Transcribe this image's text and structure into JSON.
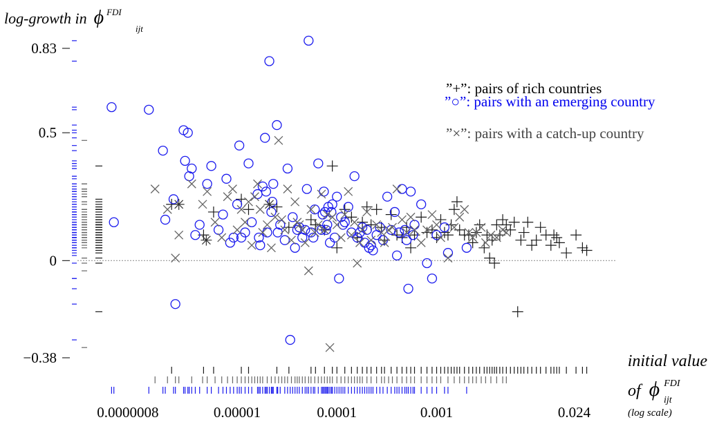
{
  "chart_data": {
    "type": "scatter",
    "title": "",
    "ylabel": {
      "main": "log-growth in",
      "symbol": "ϕ",
      "sup": "FDI",
      "sub": "ijt"
    },
    "xlabel": {
      "line1": "initial value",
      "line2_prefix": "of",
      "symbol": "ϕ",
      "sup": "FDI",
      "sub": "ijt",
      "line3": "(log scale)"
    },
    "x_scale": "log",
    "xlim": [
      2.5e-07,
      0.062
    ],
    "ylim": [
      -0.38,
      0.83
    ],
    "xticks": [
      {
        "label": "0.0000008",
        "value": 8e-07
      },
      {
        "label": "0.00001",
        "value": 1e-05
      },
      {
        "label": "0.0001",
        "value": 0.0001
      },
      {
        "label": "0.001",
        "value": 0.001
      },
      {
        "label": "0.024",
        "value": 0.024
      }
    ],
    "yticks": [
      {
        "label": "0.83",
        "value": 0.83
      },
      {
        "label": "0.5",
        "value": 0.5
      },
      {
        "label": "0",
        "value": 0
      },
      {
        "label": "−0.38",
        "value": -0.38
      }
    ],
    "reference_line": {
      "y": 0,
      "style": "dotted"
    },
    "legend": {
      "placement": "top-right",
      "entries": [
        {
          "text": "”+”: pairs of rich countries",
          "color": "#000000"
        },
        {
          "text": "”○”: pairs with an emerging country",
          "color": "#0000ee"
        },
        {
          "text": "”×”: pairs with a catch-up country",
          "color": "#444444"
        }
      ]
    },
    "colors": {
      "rich": "#1a1a1a",
      "emerging": "#1a1aee",
      "catchup": "#666666"
    },
    "series": [
      {
        "key": "rich",
        "marker": "plus",
        "points": [
          [
            2.2e-06,
            0.22
          ],
          [
            4.6e-06,
            0.1
          ],
          [
            5.8e-06,
            0.19
          ],
          [
            1.1e-05,
            0.24
          ],
          [
            1.3e-05,
            0.2
          ],
          [
            2.5e-05,
            0.21
          ],
          [
            3.3e-05,
            0.13
          ],
          [
            5.5e-05,
            0.16
          ],
          [
            6.1e-05,
            0.14
          ],
          [
            7.5e-05,
            0.12
          ],
          [
            9e-05,
            0.37
          ],
          [
            0.0001,
            0.05
          ],
          [
            0.00012,
            0.2
          ],
          [
            0.00014,
            0.17
          ],
          [
            0.00016,
            0.09
          ],
          [
            0.00018,
            0.15
          ],
          [
            0.0002,
            0.21
          ],
          [
            0.00022,
            0.14
          ],
          [
            0.00025,
            0.2
          ],
          [
            0.00028,
            0.13
          ],
          [
            0.0003,
            0.08
          ],
          [
            0.00035,
            0.18
          ],
          [
            0.0004,
            0.1
          ],
          [
            0.00045,
            0.09
          ],
          [
            0.0005,
            0.13
          ],
          [
            0.00055,
            0.05
          ],
          [
            0.0006,
            0.1
          ],
          [
            0.0007,
            0.17
          ],
          [
            0.0008,
            0.11
          ],
          [
            0.0009,
            0.12
          ],
          [
            0.001,
            0.09
          ],
          [
            0.0011,
            0.16
          ],
          [
            0.0012,
            0.11
          ],
          [
            0.0013,
            0.1
          ],
          [
            0.0014,
            0.14
          ],
          [
            0.0015,
            0.2
          ],
          [
            0.0016,
            0.23
          ],
          [
            0.0017,
            0.12
          ],
          [
            0.0019,
            0.1
          ],
          [
            0.0021,
            0.1
          ],
          [
            0.0023,
            0.07
          ],
          [
            0.0025,
            0.11
          ],
          [
            0.0027,
            0.14
          ],
          [
            0.003,
            0.05
          ],
          [
            0.0032,
            0.1
          ],
          [
            0.0034,
            0.01
          ],
          [
            0.0036,
            0.08
          ],
          [
            0.0038,
            -0.01
          ],
          [
            0.004,
            0.14
          ],
          [
            0.0043,
            0.1
          ],
          [
            0.0046,
            0.16
          ],
          [
            0.005,
            0.14
          ],
          [
            0.0055,
            0.12
          ],
          [
            0.006,
            0.15
          ],
          [
            0.0065,
            -0.2
          ],
          [
            0.007,
            0.08
          ],
          [
            0.0075,
            0.11
          ],
          [
            0.0082,
            0.15
          ],
          [
            0.009,
            0.06
          ],
          [
            0.01,
            0.08
          ],
          [
            0.011,
            0.13
          ],
          [
            0.0125,
            0.1
          ],
          [
            0.014,
            0.06
          ],
          [
            0.015,
            0.1
          ],
          [
            0.016,
            0.09
          ],
          [
            0.017,
            0.07
          ],
          [
            0.02,
            0.03
          ],
          [
            0.025,
            0.1
          ],
          [
            0.029,
            0.05
          ],
          [
            0.032,
            0.04
          ]
        ]
      },
      {
        "key": "emerging",
        "marker": "circle",
        "points": [
          [
            5.5e-07,
            0.6
          ],
          [
            5.8e-07,
            0.15
          ],
          [
            1.3e-06,
            0.59
          ],
          [
            1.8e-06,
            0.43
          ],
          [
            1.9e-06,
            0.16
          ],
          [
            2.3e-06,
            0.24
          ],
          [
            2.4e-06,
            -0.17
          ],
          [
            2.9e-06,
            0.51
          ],
          [
            3e-06,
            0.39
          ],
          [
            3.2e-06,
            0.5
          ],
          [
            3.3e-06,
            0.33
          ],
          [
            3.5e-06,
            0.36
          ],
          [
            3.8e-06,
            0.1
          ],
          [
            4.2e-06,
            0.14
          ],
          [
            5e-06,
            0.3
          ],
          [
            5.5e-06,
            0.37
          ],
          [
            6.5e-06,
            0.12
          ],
          [
            7.2e-06,
            0.18
          ],
          [
            7.8e-06,
            0.32
          ],
          [
            8.5e-06,
            0.07
          ],
          [
            9.2e-06,
            0.09
          ],
          [
            1e-05,
            0.22
          ],
          [
            1.05e-05,
            0.45
          ],
          [
            1.1e-05,
            0.09
          ],
          [
            1.2e-05,
            0.11
          ],
          [
            1.3e-05,
            0.38
          ],
          [
            1.4e-05,
            0.15
          ],
          [
            1.6e-05,
            0.26
          ],
          [
            1.65e-05,
            0.09
          ],
          [
            1.7e-05,
            0.06
          ],
          [
            1.8e-05,
            0.29
          ],
          [
            1.9e-05,
            0.48
          ],
          [
            1.95e-05,
            0.27
          ],
          [
            2e-05,
            0.11
          ],
          [
            2.1e-05,
            0.78
          ],
          [
            2.2e-05,
            0.19
          ],
          [
            2.25e-05,
            0.23
          ],
          [
            2.3e-05,
            0.3
          ],
          [
            2.5e-05,
            0.53
          ],
          [
            2.55e-05,
            0.11
          ],
          [
            2.7e-05,
            0.14
          ],
          [
            3e-05,
            0.08
          ],
          [
            3.2e-05,
            0.36
          ],
          [
            3.4e-05,
            -0.31
          ],
          [
            3.6e-05,
            0.17
          ],
          [
            3.8e-05,
            0.05
          ],
          [
            4e-05,
            0.12
          ],
          [
            4.2e-05,
            0.13
          ],
          [
            4.5e-05,
            0.09
          ],
          [
            4.8e-05,
            0.12
          ],
          [
            5e-05,
            0.28
          ],
          [
            5.2e-05,
            0.86
          ],
          [
            5.5e-05,
            0.11
          ],
          [
            5.8e-05,
            0.09
          ],
          [
            6e-05,
            0.2
          ],
          [
            6.5e-05,
            0.38
          ],
          [
            7e-05,
            0.12
          ],
          [
            7.2e-05,
            0.18
          ],
          [
            7.4e-05,
            0.27
          ],
          [
            7.6e-05,
            0.19
          ],
          [
            7.8e-05,
            0.12
          ],
          [
            8e-05,
            0.14
          ],
          [
            8.2e-05,
            0.21
          ],
          [
            8.5e-05,
            0.07
          ],
          [
            8.8e-05,
            0.19
          ],
          [
            9e-05,
            0.22
          ],
          [
            9.5e-05,
            0.09
          ],
          [
            0.0001,
            0.25
          ],
          [
            0.000105,
            -0.07
          ],
          [
            0.00011,
            0.17
          ],
          [
            0.000115,
            0.14
          ],
          [
            0.00012,
            0.15
          ],
          [
            0.00013,
            0.21
          ],
          [
            0.00014,
            0.11
          ],
          [
            0.00015,
            0.33
          ],
          [
            0.00016,
            0.09
          ],
          [
            0.00017,
            0.11
          ],
          [
            0.00018,
            0.13
          ],
          [
            0.00019,
            0.07
          ],
          [
            0.0002,
            0.12
          ],
          [
            0.00021,
            0.05
          ],
          [
            0.00022,
            0.06
          ],
          [
            0.00023,
            0.04
          ],
          [
            0.00025,
            0.1
          ],
          [
            0.00027,
            0.13
          ],
          [
            0.00029,
            0.08
          ],
          [
            0.00032,
            0.25
          ],
          [
            0.00035,
            0.12
          ],
          [
            0.00038,
            0.19
          ],
          [
            0.0004,
            0.02
          ],
          [
            0.00042,
            0.11
          ],
          [
            0.00045,
            0.28
          ],
          [
            0.00048,
            0.12
          ],
          [
            0.0005,
            0.08
          ],
          [
            0.00052,
            -0.11
          ],
          [
            0.00055,
            0.27
          ],
          [
            0.00058,
            0.1
          ],
          [
            0.0006,
            0.14
          ],
          [
            0.0007,
            0.22
          ],
          [
            0.0008,
            -0.01
          ],
          [
            0.0009,
            -0.07
          ],
          [
            0.001,
            0.1
          ],
          [
            0.0012,
            0.13
          ],
          [
            0.0013,
            0.03
          ],
          [
            0.002,
            0.05
          ]
        ]
      },
      {
        "key": "catchup",
        "marker": "cross",
        "points": [
          [
            1.5e-06,
            0.28
          ],
          [
            2e-06,
            0.2
          ],
          [
            2.4e-06,
            0.01
          ],
          [
            2.6e-06,
            0.1
          ],
          [
            3.5e-06,
            0.3
          ],
          [
            4.5e-06,
            0.22
          ],
          [
            5e-06,
            0.27
          ],
          [
            6e-06,
            0.15
          ],
          [
            7e-06,
            0.09
          ],
          [
            8e-06,
            0.25
          ],
          [
            9e-06,
            0.28
          ],
          [
            1e-05,
            0.12
          ],
          [
            1.1e-05,
            0.2
          ],
          [
            1.2e-05,
            0.15
          ],
          [
            1.3e-05,
            0.23
          ],
          [
            1.4e-05,
            0.06
          ],
          [
            1.5e-05,
            0.25
          ],
          [
            1.6e-05,
            0.3
          ],
          [
            1.7e-05,
            0.2
          ],
          [
            1.8e-05,
            0.11
          ],
          [
            2e-05,
            0.14
          ],
          [
            2.2e-05,
            0.05
          ],
          [
            2.4e-05,
            0.17
          ],
          [
            2.6e-05,
            0.47
          ],
          [
            2.8e-05,
            0.16
          ],
          [
            3e-05,
            0.12
          ],
          [
            3.2e-05,
            0.28
          ],
          [
            3.5e-05,
            0.08
          ],
          [
            3.8e-05,
            0.23
          ],
          [
            4e-05,
            0.15
          ],
          [
            4.2e-05,
            0.14
          ],
          [
            4.5e-05,
            0.12
          ],
          [
            4.8e-05,
            0.07
          ],
          [
            5.2e-05,
            -0.04
          ],
          [
            5.5e-05,
            0.2
          ],
          [
            6e-05,
            0.11
          ],
          [
            6.5e-05,
            0.14
          ],
          [
            7e-05,
            0.26
          ],
          [
            7.5e-05,
            0.12
          ],
          [
            8e-05,
            0.18
          ],
          [
            8.5e-05,
            -0.34
          ],
          [
            9e-05,
            0.17
          ],
          [
            0.0001,
            0.14
          ],
          [
            0.00011,
            0.09
          ],
          [
            0.00012,
            0.18
          ],
          [
            0.00013,
            0.27
          ],
          [
            0.00014,
            0.1
          ],
          [
            0.00015,
            0.15
          ],
          [
            0.00016,
            -0.01
          ],
          [
            0.00017,
            0.07
          ],
          [
            0.00018,
            0.12
          ],
          [
            0.0002,
            0.19
          ],
          [
            0.00022,
            0.08
          ],
          [
            0.00025,
            0.14
          ],
          [
            0.00028,
            0.11
          ],
          [
            0.0003,
            0.07
          ],
          [
            0.00033,
            0.12
          ],
          [
            0.00036,
            0.13
          ],
          [
            0.0004,
            0.28
          ],
          [
            0.00045,
            0.16
          ],
          [
            0.0005,
            0.11
          ],
          [
            0.00055,
            0.17
          ],
          [
            0.0006,
            0.12
          ],
          [
            0.0007,
            0.07
          ],
          [
            0.0008,
            0.12
          ],
          [
            0.0009,
            0.18
          ],
          [
            0.001,
            0.14
          ],
          [
            0.0011,
            0.09
          ],
          [
            0.0013,
            0.01
          ],
          [
            0.0015,
            0.13
          ],
          [
            0.0017,
            0.17
          ],
          [
            0.0019,
            0.2
          ],
          [
            0.0021,
            0.11
          ],
          [
            0.0023,
            0.09
          ],
          [
            0.0025,
            0.11
          ],
          [
            0.0028,
            0.13
          ],
          [
            0.0031,
            0.07
          ],
          [
            0.0035,
            0.1
          ],
          [
            0.004,
            0.09
          ],
          [
            0.0046,
            0.12
          ],
          [
            0.005,
            0.11
          ]
        ]
      }
    ],
    "stars": [
      [
        2.6e-06,
        0.22
      ],
      [
        4.9e-06,
        0.08
      ],
      [
        2.1e-05,
        0.22
      ]
    ]
  }
}
